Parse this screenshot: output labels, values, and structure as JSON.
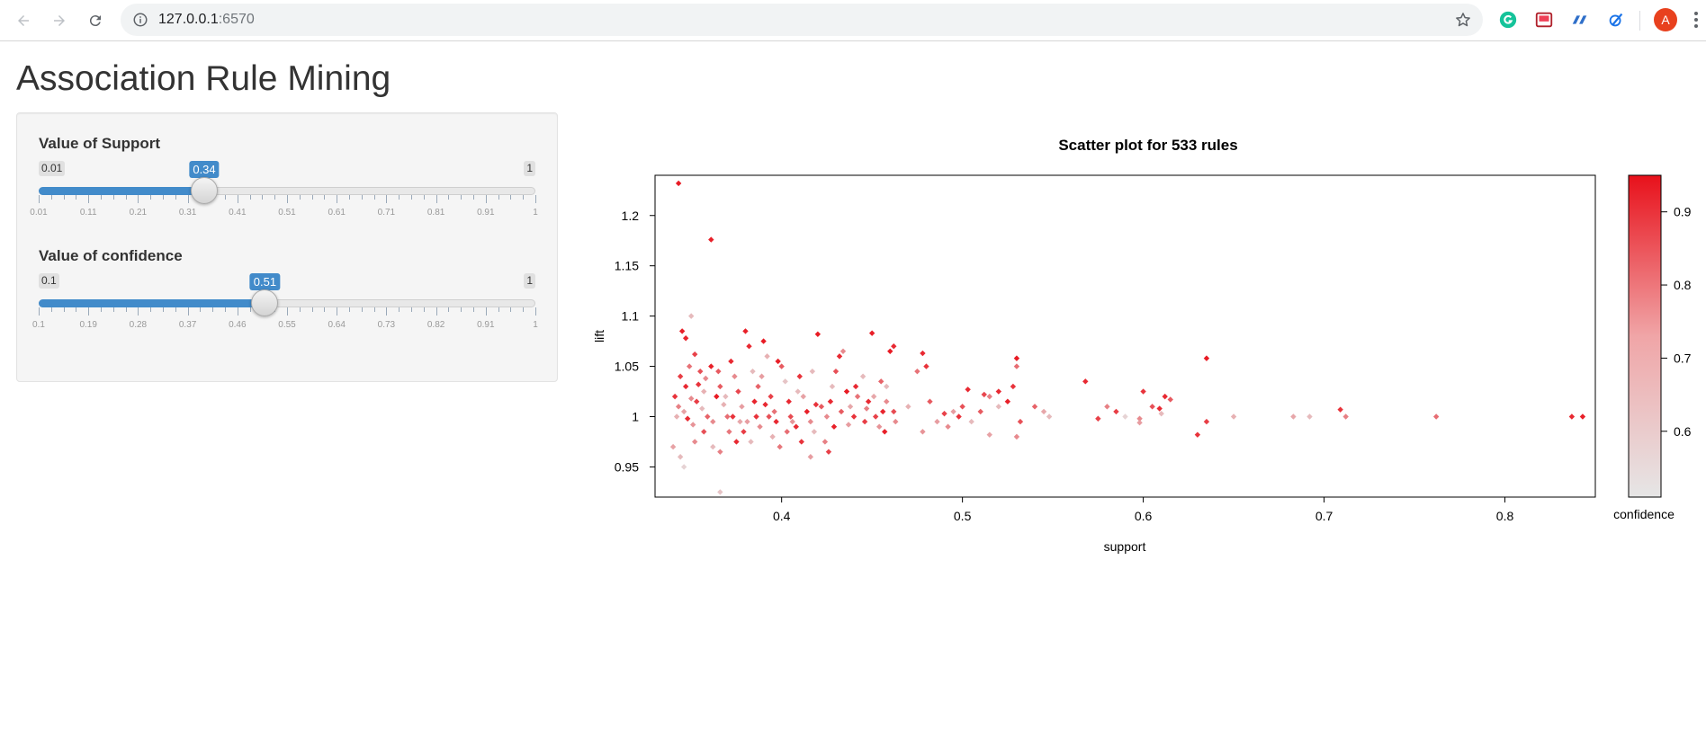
{
  "browser": {
    "url_host": "127.0.0.1",
    "url_port": ":6570",
    "avatar_letter": "A",
    "icons": [
      "back-arrow-icon",
      "forward-arrow-icon",
      "reload-icon",
      "site-info-icon",
      "bookmark-star-icon",
      "grammarly-icon",
      "pocket-icon",
      "extension-icon",
      "extension-icon",
      "chrome-menu-icon"
    ]
  },
  "page": {
    "title": "Association Rule Mining"
  },
  "sliders": [
    {
      "label": "Value of Support",
      "min": 0.01,
      "max": 1,
      "min_label": "0.01",
      "max_label": "1",
      "value": 0.34,
      "value_label": "0.34",
      "tick_labels": [
        "0.01",
        "0.11",
        "0.21",
        "0.31",
        "0.41",
        "0.51",
        "0.61",
        "0.71",
        "0.81",
        "0.91",
        "1"
      ],
      "accent": "#428bca"
    },
    {
      "label": "Value of confidence",
      "min": 0.1,
      "max": 1,
      "min_label": "0.1",
      "max_label": "1",
      "value": 0.51,
      "value_label": "0.51",
      "tick_labels": [
        "0.1",
        "0.19",
        "0.28",
        "0.37",
        "0.46",
        "0.55",
        "0.64",
        "0.73",
        "0.82",
        "0.91",
        "1"
      ],
      "accent": "#428bca"
    }
  ],
  "chart_data": {
    "type": "scatter",
    "title": "Scatter plot for 533 rules",
    "xlabel": "support",
    "ylabel": "lift",
    "xlim": [
      0.33,
      0.85
    ],
    "ylim": [
      0.92,
      1.24
    ],
    "xticks": [
      0.4,
      0.5,
      0.6,
      0.7,
      0.8
    ],
    "xtick_labels": [
      "0.4",
      "0.5",
      "0.6",
      "0.7",
      "0.8"
    ],
    "yticks": [
      0.95,
      1,
      1.05,
      1.1,
      1.15,
      1.2
    ],
    "ytick_labels": [
      "0.95",
      "1",
      "1.05",
      "1.1",
      "1.15",
      "1.2"
    ],
    "grid": false,
    "colorbar": {
      "label": "confidence",
      "range": [
        0.51,
        0.95
      ],
      "ticks": [
        0.6,
        0.7,
        0.8,
        0.9
      ],
      "tick_labels": [
        "0.6",
        "0.7",
        "0.8",
        "0.9"
      ],
      "color_low": "#e6e6e6",
      "color_high": "#e8111b"
    },
    "marker": "diamond",
    "points": [
      [
        0.343,
        1.232,
        0.93
      ],
      [
        0.361,
        1.176,
        0.92
      ],
      [
        0.345,
        1.085,
        0.92
      ],
      [
        0.347,
        1.078,
        0.91
      ],
      [
        0.35,
        1.1,
        0.6
      ],
      [
        0.352,
        1.062,
        0.85
      ],
      [
        0.349,
        1.05,
        0.75
      ],
      [
        0.355,
        1.045,
        0.82
      ],
      [
        0.358,
        1.038,
        0.7
      ],
      [
        0.341,
        1.02,
        0.88
      ],
      [
        0.343,
        1.01,
        0.72
      ],
      [
        0.346,
        1.005,
        0.65
      ],
      [
        0.348,
        0.998,
        0.9
      ],
      [
        0.351,
        0.992,
        0.68
      ],
      [
        0.353,
        1.015,
        0.86
      ],
      [
        0.356,
        1.008,
        0.6
      ],
      [
        0.359,
        1.0,
        0.78
      ],
      [
        0.362,
        0.995,
        0.7
      ],
      [
        0.364,
        1.02,
        0.93
      ],
      [
        0.366,
        1.03,
        0.8
      ],
      [
        0.368,
        1.012,
        0.62
      ],
      [
        0.37,
        1.0,
        0.76
      ],
      [
        0.34,
        0.97,
        0.65
      ],
      [
        0.344,
        0.96,
        0.6
      ],
      [
        0.346,
        0.95,
        0.55
      ],
      [
        0.352,
        0.975,
        0.7
      ],
      [
        0.357,
        0.985,
        0.82
      ],
      [
        0.362,
        0.97,
        0.6
      ],
      [
        0.366,
        0.965,
        0.72
      ],
      [
        0.366,
        0.925,
        0.58
      ],
      [
        0.372,
        1.055,
        0.9
      ],
      [
        0.374,
        1.04,
        0.7
      ],
      [
        0.376,
        1.025,
        0.84
      ],
      [
        0.378,
        1.01,
        0.66
      ],
      [
        0.38,
        1.085,
        0.92
      ],
      [
        0.382,
        1.07,
        0.9
      ],
      [
        0.384,
        1.045,
        0.6
      ],
      [
        0.386,
        1.0,
        0.88
      ],
      [
        0.388,
        0.99,
        0.7
      ],
      [
        0.39,
        1.075,
        0.93
      ],
      [
        0.392,
        1.06,
        0.62
      ],
      [
        0.394,
        1.02,
        0.85
      ],
      [
        0.396,
        1.005,
        0.75
      ],
      [
        0.398,
        1.055,
        0.92
      ],
      [
        0.4,
        1.05,
        0.8
      ],
      [
        0.402,
        1.035,
        0.58
      ],
      [
        0.404,
        1.015,
        0.9
      ],
      [
        0.406,
        0.995,
        0.68
      ],
      [
        0.379,
        0.985,
        0.86
      ],
      [
        0.383,
        0.975,
        0.6
      ],
      [
        0.387,
        1.03,
        0.78
      ],
      [
        0.391,
        1.012,
        0.9
      ],
      [
        0.395,
        0.98,
        0.62
      ],
      [
        0.399,
        0.97,
        0.74
      ],
      [
        0.41,
        1.04,
        0.88
      ],
      [
        0.412,
        1.02,
        0.65
      ],
      [
        0.414,
        1.005,
        0.92
      ],
      [
        0.416,
        0.995,
        0.7
      ],
      [
        0.418,
        0.985,
        0.6
      ],
      [
        0.42,
        1.082,
        0.93
      ],
      [
        0.422,
        1.01,
        0.8
      ],
      [
        0.424,
        0.975,
        0.72
      ],
      [
        0.426,
        0.965,
        0.85
      ],
      [
        0.428,
        1.03,
        0.6
      ],
      [
        0.416,
        0.96,
        0.66
      ],
      [
        0.408,
        0.99,
        0.9
      ],
      [
        0.43,
        1.045,
        0.82
      ],
      [
        0.432,
        1.06,
        0.9
      ],
      [
        0.434,
        1.065,
        0.7
      ],
      [
        0.436,
        1.025,
        0.93
      ],
      [
        0.438,
        1.01,
        0.64
      ],
      [
        0.44,
        1.0,
        0.88
      ],
      [
        0.442,
        1.02,
        0.75
      ],
      [
        0.445,
        1.04,
        0.6
      ],
      [
        0.448,
        1.015,
        0.9
      ],
      [
        0.45,
        1.083,
        0.92
      ],
      [
        0.452,
        1.0,
        0.85
      ],
      [
        0.454,
        0.99,
        0.68
      ],
      [
        0.456,
        1.005,
        0.91
      ],
      [
        0.458,
        1.015,
        0.7
      ],
      [
        0.46,
        1.065,
        0.93
      ],
      [
        0.462,
        1.07,
        0.9
      ],
      [
        0.458,
        1.03,
        0.6
      ],
      [
        0.446,
        0.995,
        0.86
      ],
      [
        0.455,
        1.035,
        0.78
      ],
      [
        0.462,
        1.005,
        0.83
      ],
      [
        0.47,
        1.01,
        0.62
      ],
      [
        0.475,
        1.045,
        0.75
      ],
      [
        0.478,
        1.063,
        0.9
      ],
      [
        0.48,
        1.05,
        0.88
      ],
      [
        0.478,
        0.985,
        0.68
      ],
      [
        0.482,
        1.015,
        0.8
      ],
      [
        0.49,
        1.003,
        0.85
      ],
      [
        0.492,
        0.99,
        0.7
      ],
      [
        0.495,
        1.005,
        0.66
      ],
      [
        0.5,
        1.01,
        0.82
      ],
      [
        0.503,
        1.027,
        0.9
      ],
      [
        0.505,
        0.995,
        0.6
      ],
      [
        0.51,
        1.005,
        0.8
      ],
      [
        0.512,
        1.022,
        0.84
      ],
      [
        0.515,
        1.02,
        0.72
      ],
      [
        0.52,
        1.025,
        0.9
      ],
      [
        0.515,
        0.982,
        0.65
      ],
      [
        0.52,
        1.01,
        0.6
      ],
      [
        0.528,
        1.03,
        0.88
      ],
      [
        0.53,
        1.058,
        0.93
      ],
      [
        0.53,
        1.05,
        0.76
      ],
      [
        0.532,
        0.995,
        0.82
      ],
      [
        0.53,
        0.98,
        0.7
      ],
      [
        0.54,
        1.01,
        0.78
      ],
      [
        0.545,
        1.005,
        0.64
      ],
      [
        0.568,
        1.035,
        0.9
      ],
      [
        0.575,
        0.998,
        0.85
      ],
      [
        0.58,
        1.01,
        0.72
      ],
      [
        0.585,
        1.005,
        0.86
      ],
      [
        0.6,
        1.025,
        0.88
      ],
      [
        0.598,
        0.998,
        0.7
      ],
      [
        0.605,
        1.01,
        0.82
      ],
      [
        0.61,
        1.003,
        0.6
      ],
      [
        0.612,
        1.02,
        0.9
      ],
      [
        0.615,
        1.017,
        0.8
      ],
      [
        0.63,
        0.982,
        0.88
      ],
      [
        0.635,
        1.058,
        0.93
      ],
      [
        0.635,
        0.995,
        0.86
      ],
      [
        0.65,
        1.0,
        0.62
      ],
      [
        0.683,
        1.0,
        0.64
      ],
      [
        0.692,
        1.0,
        0.6
      ],
      [
        0.709,
        1.007,
        0.88
      ],
      [
        0.712,
        1.0,
        0.72
      ],
      [
        0.762,
        1.0,
        0.76
      ],
      [
        0.837,
        1.0,
        0.9
      ],
      [
        0.843,
        1.0,
        0.92
      ],
      [
        0.598,
        0.994,
        0.66
      ],
      [
        0.609,
        1.008,
        0.9
      ],
      [
        0.447,
        1.008,
        0.72
      ],
      [
        0.437,
        0.992,
        0.66
      ],
      [
        0.441,
        1.03,
        0.9
      ],
      [
        0.405,
        1.0,
        0.83
      ],
      [
        0.409,
        1.025,
        0.6
      ],
      [
        0.419,
        1.012,
        0.88
      ],
      [
        0.425,
        1.0,
        0.7
      ],
      [
        0.429,
        0.99,
        0.92
      ],
      [
        0.389,
        1.04,
        0.66
      ],
      [
        0.393,
        1.0,
        0.82
      ],
      [
        0.397,
        0.995,
        0.9
      ],
      [
        0.377,
        0.995,
        0.64
      ],
      [
        0.373,
        1.0,
        0.88
      ],
      [
        0.369,
        1.02,
        0.6
      ],
      [
        0.365,
        1.045,
        0.8
      ],
      [
        0.361,
        1.05,
        0.92
      ],
      [
        0.357,
        1.025,
        0.62
      ],
      [
        0.354,
        1.032,
        0.88
      ],
      [
        0.35,
        1.018,
        0.7
      ],
      [
        0.347,
        1.03,
        0.9
      ],
      [
        0.342,
        1.0,
        0.62
      ],
      [
        0.344,
        1.04,
        0.86
      ],
      [
        0.371,
        0.985,
        0.74
      ],
      [
        0.375,
        0.975,
        0.9
      ],
      [
        0.381,
        0.995,
        0.66
      ],
      [
        0.385,
        1.015,
        0.91
      ],
      [
        0.403,
        0.985,
        0.76
      ],
      [
        0.411,
        0.975,
        0.88
      ],
      [
        0.417,
        1.045,
        0.6
      ],
      [
        0.427,
        1.015,
        0.9
      ],
      [
        0.433,
        1.005,
        0.8
      ],
      [
        0.451,
        1.02,
        0.64
      ],
      [
        0.457,
        0.985,
        0.92
      ],
      [
        0.463,
        0.995,
        0.7
      ],
      [
        0.486,
        0.995,
        0.66
      ],
      [
        0.498,
        1.0,
        0.88
      ],
      [
        0.525,
        1.015,
        0.92
      ],
      [
        0.548,
        1.0,
        0.6
      ],
      [
        0.59,
        1.0,
        0.55
      ]
    ]
  }
}
